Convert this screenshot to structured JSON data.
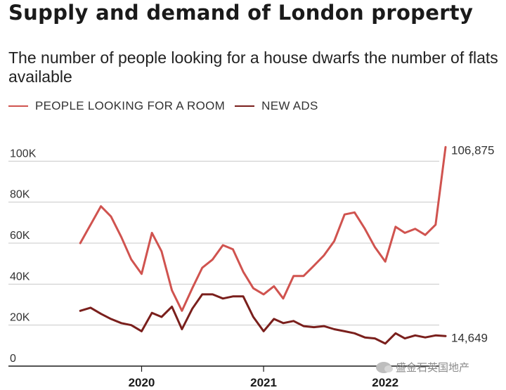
{
  "title": "Supply and demand of London property",
  "subtitle": "The number of people looking for a house dwarfs the number of flats available",
  "legend": {
    "people": "PEOPLE LOOKING FOR A ROOM",
    "ads": "NEW ADS"
  },
  "colors": {
    "people": "#d0534f",
    "ads": "#7a1f1c",
    "grid": "#c8c8c8",
    "axis": "#1a1a1a"
  },
  "watermark": "盛金石英国地产",
  "chart_data": {
    "type": "line",
    "x_axis": {
      "min": "2019-06-01",
      "max": "2022-07-01",
      "ticks": [
        {
          "date": "2020-01-01",
          "label": "2020"
        },
        {
          "date": "2021-01-01",
          "label": "2021"
        },
        {
          "date": "2022-01-01",
          "label": "2022"
        }
      ]
    },
    "y_axis": {
      "ylim": [
        0,
        108000
      ],
      "ticks": [
        {
          "value": 0,
          "label": "0"
        },
        {
          "value": 20000,
          "label": "20K"
        },
        {
          "value": 40000,
          "label": "40K"
        },
        {
          "value": 60000,
          "label": "60K"
        },
        {
          "value": 80000,
          "label": "80K"
        },
        {
          "value": 100000,
          "label": "100K"
        }
      ]
    },
    "grid": true,
    "end_labels": {
      "people": "106,875",
      "ads": "14,649"
    },
    "series": [
      {
        "name": "PEOPLE LOOKING FOR A ROOM",
        "key": "people",
        "x": [
          "2019-07-01",
          "2019-09-01",
          "2019-10-01",
          "2019-11-01",
          "2019-12-01",
          "2020-01-01",
          "2020-02-01",
          "2020-03-01",
          "2020-04-01",
          "2020-05-01",
          "2020-06-01",
          "2020-07-01",
          "2020-08-01",
          "2020-09-01",
          "2020-10-01",
          "2020-11-01",
          "2020-12-01",
          "2021-01-01",
          "2021-02-01",
          "2021-03-01",
          "2021-04-01",
          "2021-05-01",
          "2021-06-01",
          "2021-07-01",
          "2021-08-01",
          "2021-09-01",
          "2021-10-01",
          "2021-11-01",
          "2021-12-01",
          "2022-01-01",
          "2022-02-01",
          "2022-03-01",
          "2022-04-01",
          "2022-05-01",
          "2022-06-01",
          "2022-07-01"
        ],
        "y": [
          60000,
          78000,
          73000,
          63000,
          52000,
          45000,
          65000,
          56000,
          37000,
          27000,
          38000,
          48000,
          52000,
          59000,
          57000,
          46000,
          38000,
          35000,
          39000,
          33000,
          44000,
          44000,
          49000,
          54000,
          61000,
          74000,
          75000,
          67000,
          58000,
          51000,
          68000,
          65000,
          67000,
          64000,
          69000,
          106875
        ]
      },
      {
        "name": "NEW ADS",
        "key": "ads",
        "x": [
          "2019-07-01",
          "2019-08-01",
          "2019-09-01",
          "2019-10-01",
          "2019-11-01",
          "2019-12-01",
          "2020-01-01",
          "2020-02-01",
          "2020-03-01",
          "2020-04-01",
          "2020-05-01",
          "2020-06-01",
          "2020-07-01",
          "2020-08-01",
          "2020-09-01",
          "2020-10-01",
          "2020-11-01",
          "2020-12-01",
          "2021-01-01",
          "2021-02-01",
          "2021-03-01",
          "2021-04-01",
          "2021-05-01",
          "2021-06-01",
          "2021-07-01",
          "2021-08-01",
          "2021-09-01",
          "2021-10-01",
          "2021-11-01",
          "2021-12-01",
          "2022-01-01",
          "2022-02-01",
          "2022-03-01",
          "2022-04-01",
          "2022-05-01",
          "2022-06-01",
          "2022-07-01"
        ],
        "y": [
          27000,
          28500,
          25500,
          23000,
          21000,
          20000,
          17000,
          26000,
          24000,
          29000,
          18000,
          28000,
          35000,
          35000,
          33000,
          34000,
          34000,
          24000,
          17000,
          23000,
          21000,
          22000,
          19500,
          19000,
          19500,
          18000,
          17000,
          16000,
          14000,
          13500,
          11000,
          16000,
          13500,
          15000,
          14000,
          15000,
          14649
        ]
      }
    ]
  }
}
